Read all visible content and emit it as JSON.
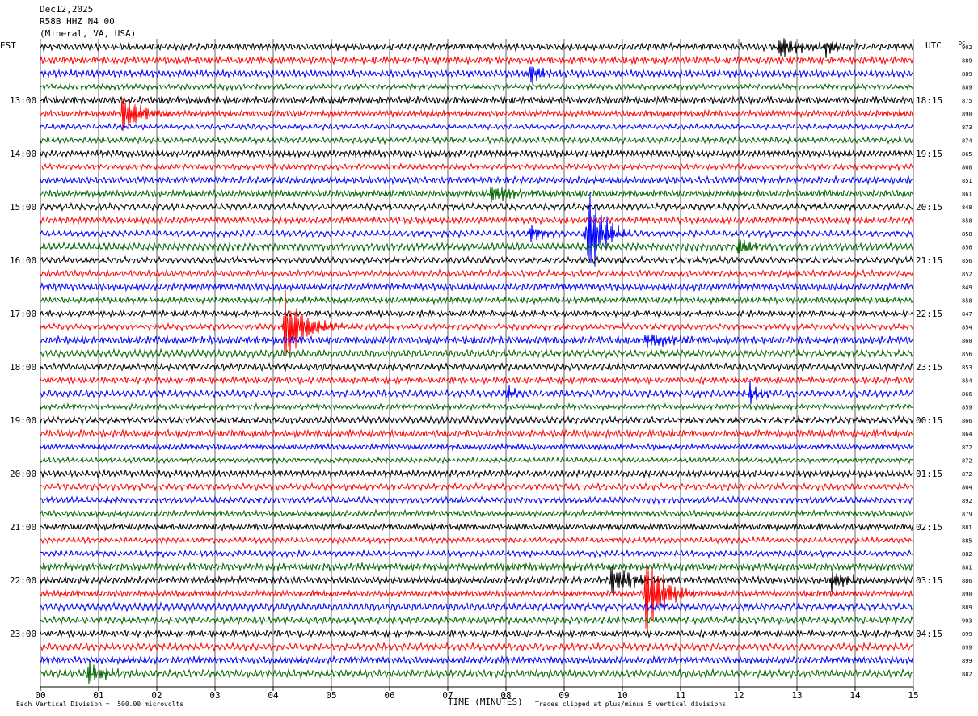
{
  "header": {
    "date": "Dec12,2025",
    "station": "R58B HHZ N4 00",
    "location": "(Mineral, VA, USA)"
  },
  "axes": {
    "left_label": "EST",
    "right_label": "UTC",
    "dc_label": "DC",
    "xlabel": "TIME (MINUTES)",
    "x_ticks": [
      "00",
      "01",
      "02",
      "03",
      "04",
      "05",
      "06",
      "07",
      "08",
      "09",
      "10",
      "11",
      "12",
      "13",
      "14",
      "15"
    ],
    "left_times": [
      {
        "row": 4,
        "label": "13:00"
      },
      {
        "row": 8,
        "label": "14:00"
      },
      {
        "row": 12,
        "label": "15:00"
      },
      {
        "row": 16,
        "label": "16:00"
      },
      {
        "row": 20,
        "label": "17:00"
      },
      {
        "row": 24,
        "label": "18:00"
      },
      {
        "row": 28,
        "label": "19:00"
      },
      {
        "row": 32,
        "label": "20:00"
      },
      {
        "row": 36,
        "label": "21:00"
      },
      {
        "row": 40,
        "label": "22:00"
      },
      {
        "row": 44,
        "label": "23:00"
      }
    ],
    "right_times": [
      {
        "row": 4,
        "label": "18:15"
      },
      {
        "row": 8,
        "label": "19:15"
      },
      {
        "row": 12,
        "label": "20:15"
      },
      {
        "row": 16,
        "label": "21:15"
      },
      {
        "row": 20,
        "label": "22:15"
      },
      {
        "row": 24,
        "label": "23:15"
      },
      {
        "row": 28,
        "label": "00:15"
      },
      {
        "row": 32,
        "label": "01:15"
      },
      {
        "row": 36,
        "label": "02:15"
      },
      {
        "row": 40,
        "label": "03:15"
      },
      {
        "row": 44,
        "label": "04:15"
      }
    ]
  },
  "footer": {
    "left_note": "Each Vertical Division =  500.00 microvolts",
    "right_note": "Traces clipped at plus/minus 5 vertical divisions"
  },
  "colors": {
    "trace_cycle": [
      "#000000",
      "#ff0000",
      "#0000ff",
      "#006400"
    ],
    "grid": "#000000"
  },
  "chart_data": {
    "type": "line",
    "title": "",
    "xlabel": "TIME (MINUTES)",
    "ylabel": "",
    "xlim": [
      0,
      15
    ],
    "rows": 48,
    "dc_offsets": [
      902,
      889,
      889,
      889,
      875,
      890,
      873,
      874,
      865,
      860,
      851,
      861,
      848,
      858,
      858,
      856,
      856,
      852,
      849,
      858,
      847,
      854,
      860,
      856,
      853,
      854,
      866,
      859,
      866,
      864,
      872,
      872,
      872,
      864,
      892,
      879,
      881,
      885,
      882,
      881,
      886,
      890,
      889,
      903,
      899,
      899,
      899,
      882
    ],
    "events": [
      {
        "row": 0,
        "minute": 12.7,
        "amp": 0.9,
        "dur": 0.3
      },
      {
        "row": 0,
        "minute": 13.5,
        "amp": 0.7,
        "dur": 0.2
      },
      {
        "row": 2,
        "minute": 8.4,
        "amp": 1.1,
        "dur": 0.2
      },
      {
        "row": 5,
        "minute": 1.4,
        "amp": 1.6,
        "dur": 0.3
      },
      {
        "row": 14,
        "minute": 9.4,
        "amp": 4.0,
        "dur": 0.25
      },
      {
        "row": 14,
        "minute": 8.4,
        "amp": 0.9,
        "dur": 0.2
      },
      {
        "row": 15,
        "minute": 12.0,
        "amp": 0.8,
        "dur": 0.2
      },
      {
        "row": 11,
        "minute": 7.7,
        "amp": 0.8,
        "dur": 0.4
      },
      {
        "row": 21,
        "minute": 4.2,
        "amp": 3.0,
        "dur": 0.35
      },
      {
        "row": 22,
        "minute": 10.4,
        "amp": 0.6,
        "dur": 0.5
      },
      {
        "row": 26,
        "minute": 12.2,
        "amp": 0.9,
        "dur": 0.15
      },
      {
        "row": 26,
        "minute": 8.0,
        "amp": 0.7,
        "dur": 0.15
      },
      {
        "row": 40,
        "minute": 9.8,
        "amp": 1.2,
        "dur": 0.4
      },
      {
        "row": 40,
        "minute": 13.6,
        "amp": 0.8,
        "dur": 0.3
      },
      {
        "row": 41,
        "minute": 10.4,
        "amp": 3.5,
        "dur": 0.3
      },
      {
        "row": 47,
        "minute": 0.8,
        "amp": 0.9,
        "dur": 0.3
      }
    ]
  }
}
